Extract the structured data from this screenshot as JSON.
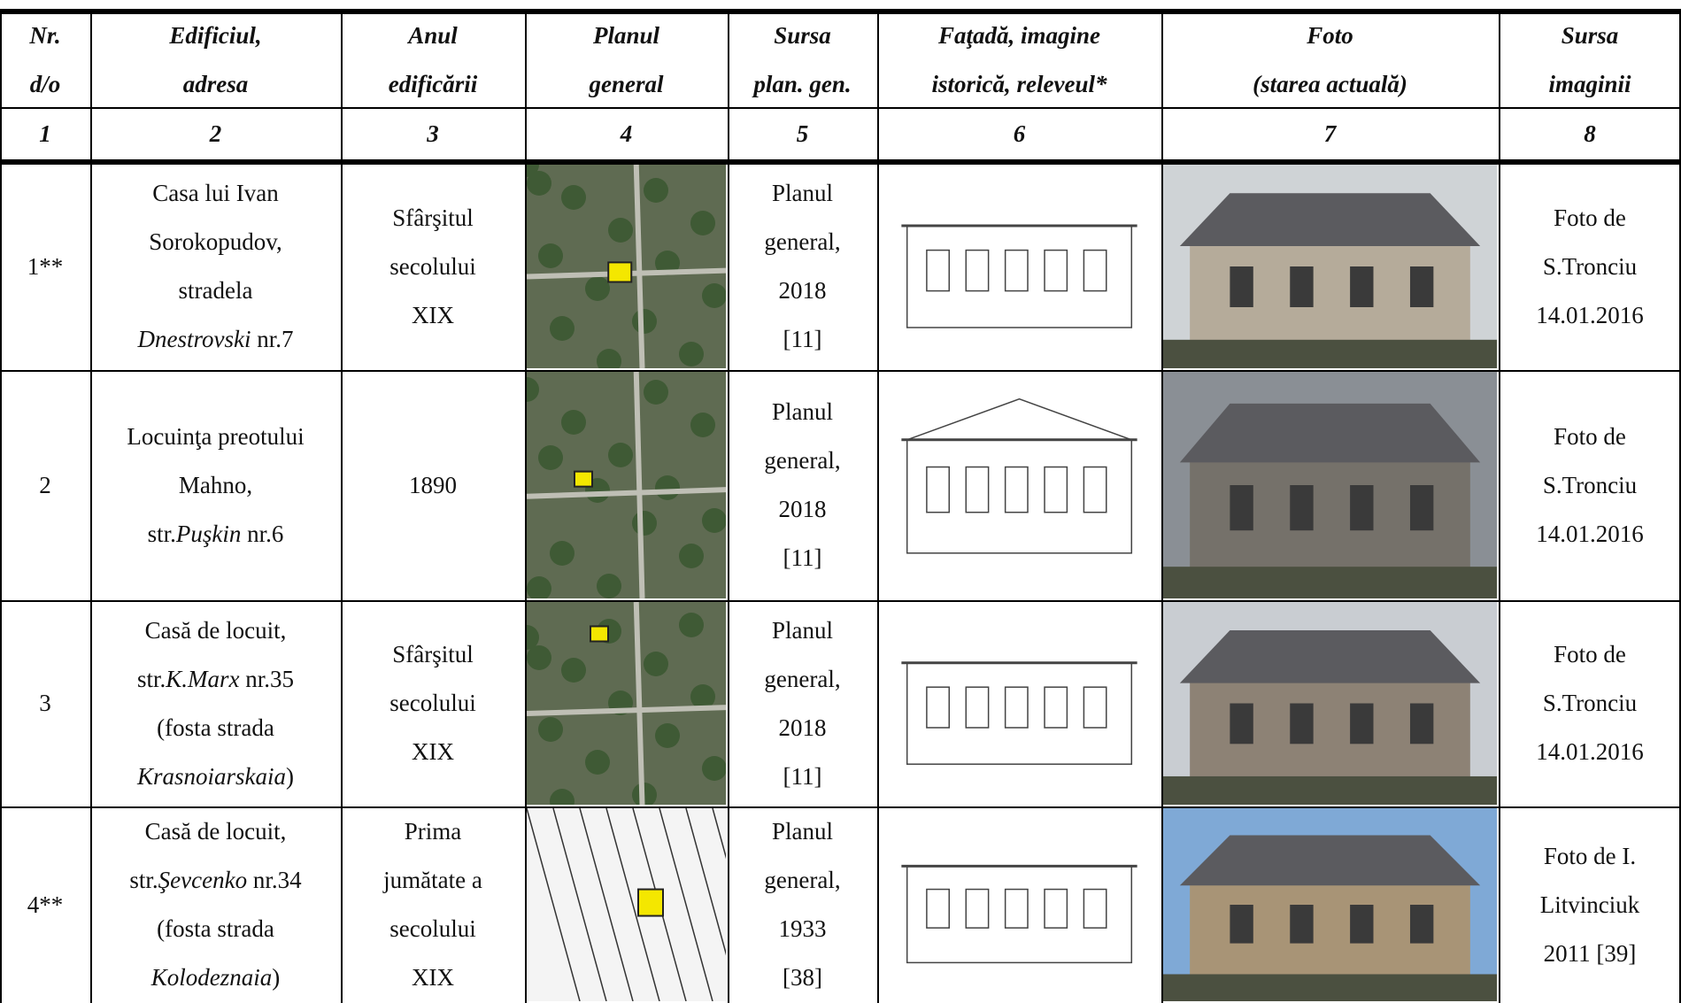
{
  "table": {
    "header": [
      [
        "Nr.",
        "d/o"
      ],
      [
        "Edificiul,",
        "adresa"
      ],
      [
        "Anul",
        "edificării"
      ],
      [
        "Planul",
        "general"
      ],
      [
        "Sursa",
        "plan. gen."
      ],
      [
        "Faţadă, imagine",
        "istorică, releveul*"
      ],
      [
        "Foto",
        "(starea actuală)"
      ],
      [
        "Sursa",
        "imaginii"
      ]
    ],
    "numbers": [
      "1",
      "2",
      "3",
      "4",
      "5",
      "6",
      "7",
      "8"
    ],
    "rows": [
      {
        "nr": "1**",
        "building": [
          "Casa lui Ivan",
          "Sorokopudov,",
          "stradela",
          [
            {
              "text": "Dnestrovski",
              "italic": true
            },
            " nr.7"
          ]
        ],
        "year": [
          "Sfârşitul",
          "secolului",
          "XIX"
        ],
        "plan_source": [
          "Planul",
          "general,",
          "2018",
          "[11]"
        ],
        "image_source": [
          "Foto de",
          "S.Tronciu",
          "14.01.2016"
        ]
      },
      {
        "nr": "2",
        "building": [
          "Locuinţa preotului",
          "Mahno,",
          [
            "str.",
            {
              "text": "Puşkin",
              "italic": true
            },
            " nr.6"
          ]
        ],
        "year": [
          "1890"
        ],
        "plan_source": [
          "Planul",
          "general,",
          "2018",
          "[11]"
        ],
        "image_source": [
          "Foto de",
          "S.Tronciu",
          "14.01.2016"
        ]
      },
      {
        "nr": "3",
        "building": [
          "Casă de locuit,",
          [
            "str.",
            {
              "text": "K.Marx",
              "italic": true
            },
            " nr.35"
          ],
          "(fosta strada",
          [
            {
              "text": "Krasnoiarskaia",
              "italic": true
            },
            ")"
          ]
        ],
        "year": [
          "Sfârşitul",
          "secolului",
          "XIX"
        ],
        "plan_source": [
          "Planul",
          "general,",
          "2018",
          "[11]"
        ],
        "image_source": [
          "Foto de",
          "S.Tronciu",
          "14.01.2016"
        ]
      },
      {
        "nr": "4**",
        "building": [
          "Casă de locuit,",
          [
            "str.",
            {
              "text": "Şevcenko",
              "italic": true
            },
            " nr.34"
          ],
          "(fosta strada",
          [
            {
              "text": "Kolodeznaia",
              "italic": true
            },
            ")"
          ]
        ],
        "year": [
          "Prima",
          "jumătate a",
          "secolului",
          "XIX"
        ],
        "plan_source": [
          "Planul",
          "general,",
          "1933",
          "[38]"
        ],
        "image_source": [
          "Foto de I.",
          "Litvinciuk",
          "2011 [39]"
        ]
      }
    ]
  }
}
